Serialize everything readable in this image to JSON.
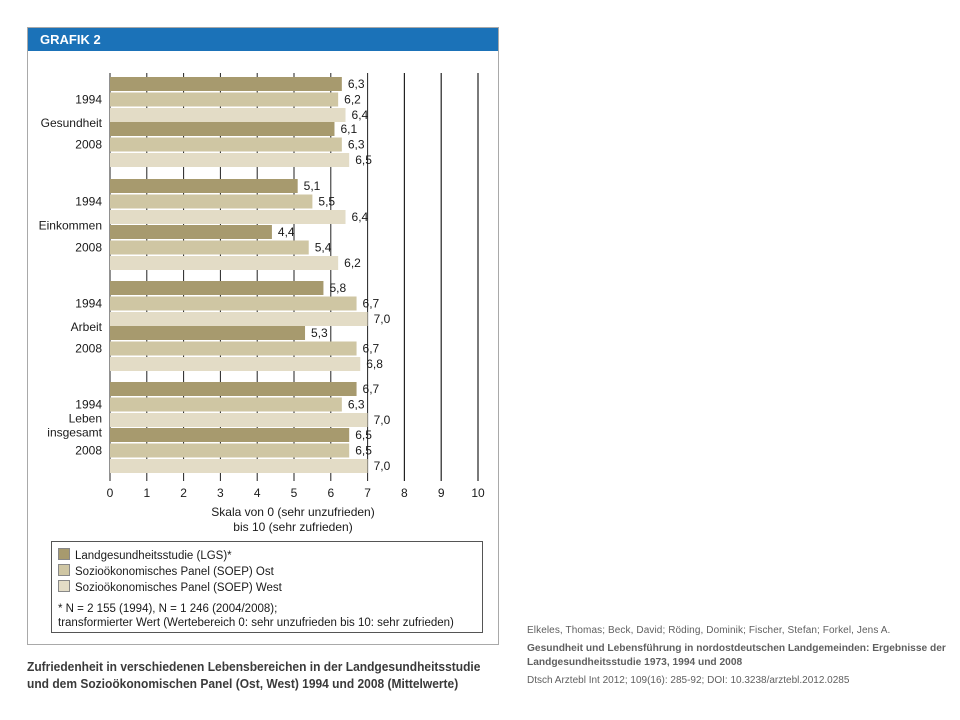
{
  "figure": {
    "header_title": "GRAFIK 2"
  },
  "chart_data": {
    "type": "bar",
    "orientation": "horizontal",
    "xlim": [
      0,
      10
    ],
    "x_ticks": [
      "0",
      "1",
      "2",
      "3",
      "4",
      "5",
      "6",
      "7",
      "8",
      "9",
      "10"
    ],
    "xlabel_line1": "Skala von 0 (sehr unzufrieden)",
    "xlabel_line2": "bis 10 (sehr zufrieden)",
    "series": [
      {
        "name": "Landgesundheitsstudie (LGS)*",
        "color": "#a79a6e"
      },
      {
        "name": "Sozioökonomisches Panel (SOEP) Ost",
        "color": "#cfc6a3"
      },
      {
        "name": "Sozioökonomisches Panel (SOEP) West",
        "color": "#e3dcc6"
      }
    ],
    "categories": [
      {
        "name": "Gesundheit",
        "label_lines": [
          "Gesundheit"
        ],
        "groups": [
          {
            "year": "1994",
            "values": [
              6.3,
              6.2,
              6.4
            ],
            "labels": [
              "6,3",
              "6,2",
              "6,4"
            ]
          },
          {
            "year": "2008",
            "values": [
              6.1,
              6.3,
              6.5
            ],
            "labels": [
              "6,1",
              "6,3",
              "6,5"
            ]
          }
        ]
      },
      {
        "name": "Einkommen",
        "label_lines": [
          "Einkommen"
        ],
        "groups": [
          {
            "year": "1994",
            "values": [
              5.1,
              5.5,
              6.4
            ],
            "labels": [
              "5,1",
              "5,5",
              "6,4"
            ]
          },
          {
            "year": "2008",
            "values": [
              4.4,
              5.4,
              6.2
            ],
            "labels": [
              "4,4",
              "5,4",
              "6,2"
            ]
          }
        ]
      },
      {
        "name": "Arbeit",
        "label_lines": [
          "Arbeit"
        ],
        "groups": [
          {
            "year": "1994",
            "values": [
              5.8,
              6.7,
              7.0
            ],
            "labels": [
              "5,8",
              "6,7",
              "7,0"
            ]
          },
          {
            "year": "2008",
            "values": [
              5.3,
              6.7,
              6.8
            ],
            "labels": [
              "5,3",
              "6,7",
              "6,8"
            ]
          }
        ]
      },
      {
        "name": "Leben insgesamt",
        "label_lines": [
          "Leben",
          "insgesamt"
        ],
        "groups": [
          {
            "year": "1994",
            "values": [
              6.7,
              6.3,
              7.0
            ],
            "labels": [
              "6,7",
              "6,3",
              "7,0"
            ]
          },
          {
            "year": "2008",
            "values": [
              6.5,
              6.5,
              7.0
            ],
            "labels": [
              "6,5",
              "6,5",
              "7,0"
            ]
          }
        ]
      }
    ],
    "footnote_line1": "* N = 2 155 (1994), N = 1 246 (2004/2008);",
    "footnote_line2": "transformierter Wert (Wertebereich 0: sehr unzufrieden bis 10: sehr zufrieden)"
  },
  "caption": "Zufriedenheit in verschiedenen Lebensbereichen in der Landgesundheitsstudie und dem Sozioökonomischen Panel (Ost, West) 1994 und 2008 (Mittelwerte)",
  "source": {
    "authors": "Elkeles, Thomas; Beck, David; Röding, Dominik; Fischer, Stefan; Forkel, Jens A.",
    "title": "Gesundheit und Lebensführung in nordostdeutschen Landgemeinden: Ergebnisse der Landgesundheitsstudie 1973, 1994 und 2008",
    "citation": "Dtsch Arztebl Int 2012; 109(16): 285-92; DOI: 10.3238/arztebl.2012.0285"
  }
}
